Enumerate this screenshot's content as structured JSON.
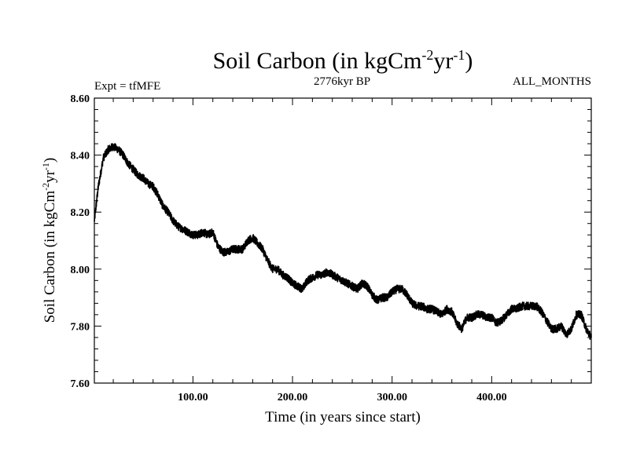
{
  "chart_data": {
    "type": "line",
    "title": {
      "main": "Soil Carbon (in kgCm",
      "sup1": "-2",
      "mid": "yr",
      "sup2": "-1",
      "end": ")"
    },
    "expt_label": "Expt = tfMFE",
    "period_label": "2776kyr BP",
    "months_label": "ALL_MONTHS",
    "xlabel": "Time (in years since start)",
    "ylabel": {
      "main": "Soil Carbon (in kgCm",
      "sup1": "-2",
      "mid": "yr",
      "sup2": "-1",
      "end": ")"
    },
    "xlim": [
      1,
      500
    ],
    "ylim": [
      7.6,
      8.6
    ],
    "xticks": [
      100,
      200,
      300,
      400
    ],
    "xtick_labels": [
      "100.00",
      "200.00",
      "300.00",
      "400.00"
    ],
    "yticks": [
      7.6,
      7.8,
      8.0,
      8.2,
      8.4,
      8.6
    ],
    "ytick_labels": [
      "7.60",
      "7.80",
      "8.00",
      "8.20",
      "8.40",
      "8.60"
    ],
    "line_color": "#000000",
    "series": [
      {
        "name": "Soil Carbon",
        "x": [
          1,
          5,
          10,
          15,
          20,
          25,
          30,
          35,
          40,
          45,
          50,
          55,
          60,
          65,
          70,
          75,
          80,
          85,
          90,
          95,
          100,
          105,
          110,
          115,
          120,
          125,
          130,
          135,
          140,
          145,
          150,
          155,
          160,
          165,
          170,
          175,
          180,
          185,
          190,
          195,
          200,
          205,
          210,
          215,
          220,
          225,
          230,
          235,
          240,
          245,
          250,
          255,
          260,
          265,
          270,
          275,
          280,
          285,
          290,
          295,
          300,
          305,
          310,
          315,
          320,
          325,
          330,
          335,
          340,
          345,
          350,
          355,
          360,
          365,
          370,
          375,
          380,
          385,
          390,
          395,
          400,
          405,
          410,
          415,
          420,
          425,
          430,
          435,
          440,
          445,
          450,
          455,
          460,
          465,
          470,
          475,
          480,
          485,
          490,
          495,
          500
        ],
        "y": [
          8.17,
          8.29,
          8.39,
          8.42,
          8.43,
          8.42,
          8.4,
          8.37,
          8.35,
          8.33,
          8.32,
          8.3,
          8.29,
          8.26,
          8.22,
          8.2,
          8.17,
          8.15,
          8.14,
          8.13,
          8.12,
          8.12,
          8.13,
          8.12,
          8.13,
          8.08,
          8.06,
          8.06,
          8.07,
          8.07,
          8.07,
          8.1,
          8.11,
          8.09,
          8.07,
          8.03,
          8.0,
          8.0,
          7.98,
          7.97,
          7.95,
          7.94,
          7.93,
          7.96,
          7.97,
          7.98,
          7.98,
          7.99,
          7.98,
          7.97,
          7.96,
          7.95,
          7.94,
          7.93,
          7.95,
          7.94,
          7.91,
          7.89,
          7.9,
          7.9,
          7.92,
          7.93,
          7.93,
          7.91,
          7.88,
          7.87,
          7.87,
          7.86,
          7.86,
          7.85,
          7.84,
          7.86,
          7.85,
          7.81,
          7.79,
          7.83,
          7.83,
          7.84,
          7.84,
          7.83,
          7.83,
          7.81,
          7.82,
          7.84,
          7.86,
          7.86,
          7.87,
          7.87,
          7.87,
          7.87,
          7.85,
          7.82,
          7.79,
          7.79,
          7.8,
          7.77,
          7.79,
          7.84,
          7.84,
          7.79,
          7.76
        ]
      }
    ]
  }
}
